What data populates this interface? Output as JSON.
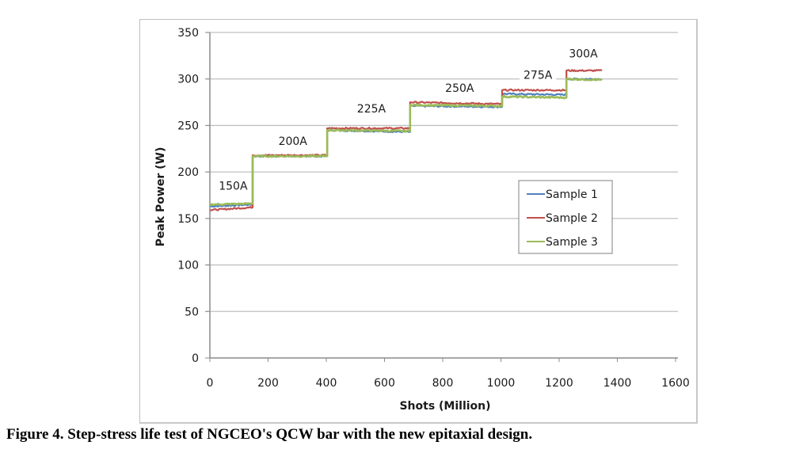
{
  "chart_data": {
    "type": "line",
    "title": "",
    "xlabel": "Shots (Million)",
    "ylabel": "Peak Power (W)",
    "xlim": [
      0,
      1600
    ],
    "ylim": [
      0,
      350
    ],
    "xticks": [
      0,
      200,
      400,
      600,
      800,
      1000,
      1200,
      1400,
      1600
    ],
    "yticks": [
      0,
      50,
      100,
      150,
      200,
      250,
      300,
      350
    ],
    "grid": "horizontal",
    "legend_position": "center-right",
    "step_boundaries": [
      0,
      147,
      403,
      688,
      1004,
      1225,
      1347
    ],
    "annotations": [
      {
        "text": "150A",
        "x": 80,
        "y": 181
      },
      {
        "text": "200A",
        "x": 285,
        "y": 229
      },
      {
        "text": "225A",
        "x": 555,
        "y": 264
      },
      {
        "text": "250A",
        "x": 858,
        "y": 286
      },
      {
        "text": "275A",
        "x": 1127,
        "y": 300
      },
      {
        "text": "300A",
        "x": 1283,
        "y": 323
      }
    ],
    "series": [
      {
        "name": "Sample 1",
        "color": "#4f81bd",
        "steps": [
          {
            "x0": 0,
            "x1": 147,
            "y0": 163,
            "y1": 165
          },
          {
            "x0": 147,
            "x1": 403,
            "y0": 217,
            "y1": 217
          },
          {
            "x0": 403,
            "x1": 688,
            "y0": 245,
            "y1": 243
          },
          {
            "x0": 688,
            "x1": 1004,
            "y0": 271,
            "y1": 270
          },
          {
            "x0": 1004,
            "x1": 1225,
            "y0": 284,
            "y1": 283
          },
          {
            "x0": 1225,
            "x1": 1347,
            "y0": 300,
            "y1": 300
          }
        ]
      },
      {
        "name": "Sample 2",
        "color": "#c0504d",
        "steps": [
          {
            "x0": 0,
            "x1": 147,
            "y0": 159,
            "y1": 162
          },
          {
            "x0": 147,
            "x1": 403,
            "y0": 218,
            "y1": 218
          },
          {
            "x0": 403,
            "x1": 688,
            "y0": 247,
            "y1": 247
          },
          {
            "x0": 688,
            "x1": 1004,
            "y0": 275,
            "y1": 273
          },
          {
            "x0": 1004,
            "x1": 1225,
            "y0": 288,
            "y1": 288
          },
          {
            "x0": 1225,
            "x1": 1347,
            "y0": 309,
            "y1": 309
          }
        ]
      },
      {
        "name": "Sample 3",
        "color": "#9bbb59",
        "steps": [
          {
            "x0": 0,
            "x1": 147,
            "y0": 165,
            "y1": 166
          },
          {
            "x0": 147,
            "x1": 403,
            "y0": 217,
            "y1": 217
          },
          {
            "x0": 403,
            "x1": 688,
            "y0": 245,
            "y1": 244
          },
          {
            "x0": 688,
            "x1": 1004,
            "y0": 272,
            "y1": 271
          },
          {
            "x0": 1004,
            "x1": 1225,
            "y0": 281,
            "y1": 280
          },
          {
            "x0": 1225,
            "x1": 1347,
            "y0": 300,
            "y1": 299
          }
        ]
      }
    ]
  },
  "caption": "Figure 4.  Step-stress life test of NGCEO's QCW bar with the new epitaxial design."
}
